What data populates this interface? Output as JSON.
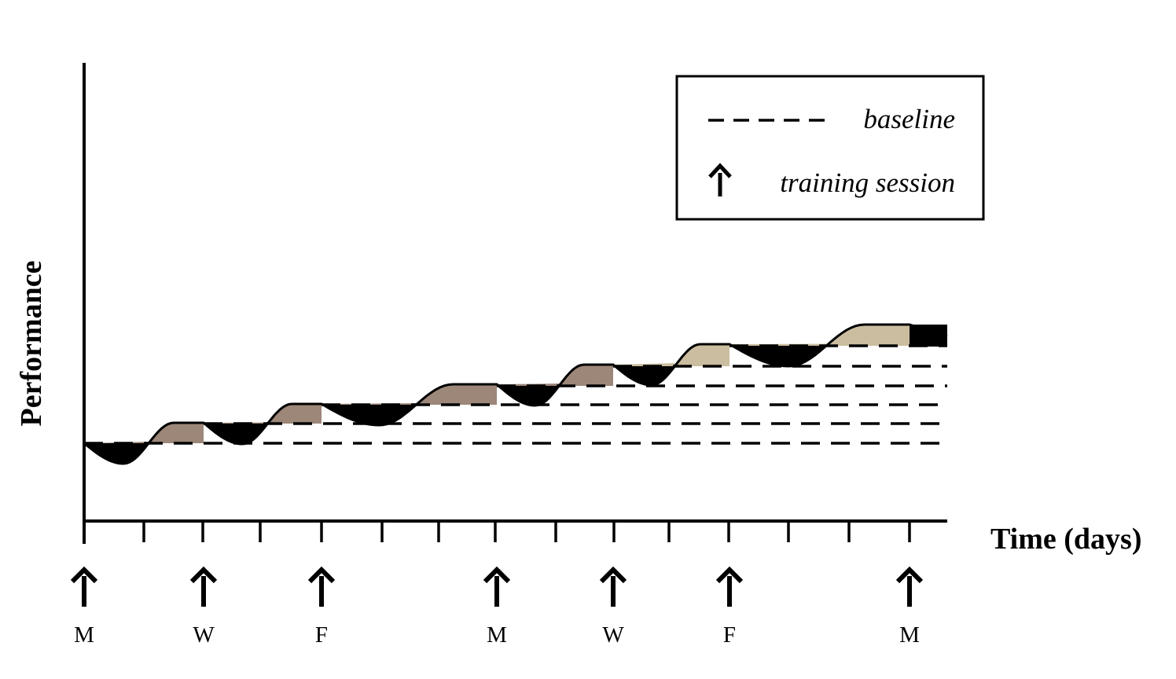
{
  "diagram": {
    "y_axis_label": "Performance",
    "x_axis_label": "Time (days)",
    "legend": {
      "items": [
        {
          "symbol": "dashed-line",
          "label": "baseline"
        },
        {
          "symbol": "arrow-up-icon",
          "label": "training session"
        }
      ]
    },
    "training_sessions": [
      "M",
      "W",
      "F",
      "M",
      "W",
      "F",
      "M"
    ],
    "baseline_count": 6,
    "colors": {
      "line": "#000000",
      "fatigue_fill": "#000000",
      "supercomp_fill_early": "#9c8779",
      "supercomp_fill_late": "#cbbd9f"
    }
  }
}
